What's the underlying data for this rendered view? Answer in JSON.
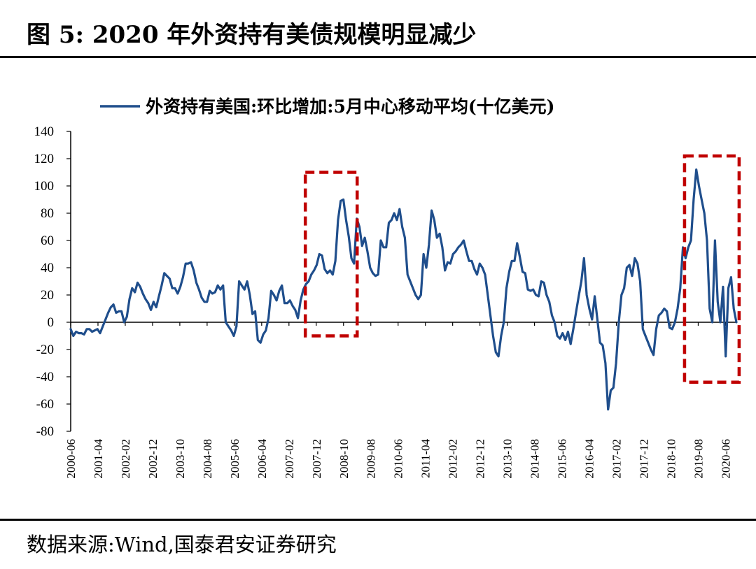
{
  "figure_title": "图 5:  2020 年外资持有美债规模明显减少",
  "source": "数据来源:Wind,国泰君安证券研究",
  "colors": {
    "series": "#1f4e8c",
    "highlight": "#c00000",
    "axis": "#000000"
  },
  "chart_data": {
    "type": "line",
    "ylim": [
      -80,
      140
    ],
    "yticks": [
      140,
      120,
      100,
      80,
      60,
      40,
      20,
      0,
      -20,
      -40,
      -60,
      -80
    ],
    "xticks": [
      "2000-06",
      "2001-04",
      "2002-02",
      "2002-12",
      "2003-10",
      "2004-08",
      "2005-06",
      "2006-04",
      "2007-02",
      "2007-12",
      "2008-10",
      "2009-08",
      "2010-06",
      "2011-04",
      "2012-02",
      "2012-12",
      "2013-10",
      "2014-08",
      "2015-06",
      "2016-04",
      "2017-02",
      "2017-12",
      "2018-10",
      "2019-08",
      "2020-06"
    ],
    "grid": false,
    "legend_position": "top-center",
    "series": [
      {
        "name": "外资持有美国:环比增加:5月中心移动平均(十亿美元)",
        "x_start": "2000-06",
        "x_end": "2020-10",
        "values": [
          -5,
          -10,
          -7,
          -8,
          -8,
          -9,
          -5,
          -5,
          -7,
          -6,
          -5,
          -8,
          -3,
          2,
          7,
          11,
          13,
          7,
          8,
          8,
          0,
          4,
          17,
          25,
          22,
          29,
          26,
          21,
          17,
          14,
          9,
          15,
          11,
          19,
          27,
          36,
          34,
          32,
          25,
          25,
          21,
          26,
          33,
          43,
          43,
          44,
          38,
          29,
          24,
          18,
          15,
          15,
          23,
          21,
          22,
          27,
          24,
          27,
          0,
          -3,
          -6,
          -10,
          -3,
          30,
          27,
          24,
          30,
          20,
          6,
          8,
          -13,
          -15,
          -9,
          -6,
          3,
          23,
          20,
          16,
          23,
          27,
          14,
          14,
          16,
          12,
          9,
          3,
          16,
          24,
          28,
          30,
          35,
          38,
          42,
          50,
          49,
          39,
          36,
          38,
          35,
          45,
          75,
          89,
          90,
          75,
          63,
          47,
          43,
          76,
          70,
          56,
          62,
          52,
          40,
          36,
          34,
          35,
          60,
          55,
          55,
          73,
          75,
          80,
          75,
          83,
          70,
          62,
          35,
          30,
          25,
          20,
          17,
          20,
          50,
          40,
          57,
          82,
          75,
          62,
          65,
          55,
          38,
          44,
          43,
          50,
          52,
          55,
          57,
          60,
          52,
          45,
          45,
          39,
          35,
          43,
          40,
          35,
          20,
          5,
          -10,
          -22,
          -25,
          -10,
          0,
          25,
          37,
          45,
          45,
          58,
          48,
          37,
          36,
          24,
          23,
          24,
          20,
          19,
          30,
          29,
          20,
          15,
          5,
          0,
          -10,
          -12,
          -8,
          -13,
          -7,
          -16,
          -5,
          7,
          19,
          30,
          47,
          20,
          10,
          2,
          19,
          2,
          -15,
          -17,
          -30,
          -64,
          -50,
          -48,
          -30,
          0,
          20,
          25,
          40,
          42,
          34,
          47,
          43,
          30,
          -5,
          -10,
          -15,
          -20,
          -24,
          -5,
          5,
          7,
          10,
          8,
          -4,
          -5,
          0,
          10,
          25,
          55,
          47,
          55,
          60,
          90,
          112,
          100,
          90,
          80,
          60,
          10,
          0,
          60,
          15,
          0,
          26,
          -25,
          25,
          33,
          10,
          0
        ]
      }
    ],
    "highlights": [
      {
        "from": "2007-08",
        "to": "2009-03",
        "y_range": [
          -10,
          110
        ]
      },
      {
        "from": "2019-03",
        "to": "2020-11",
        "y_range": [
          -44,
          122
        ]
      }
    ]
  }
}
